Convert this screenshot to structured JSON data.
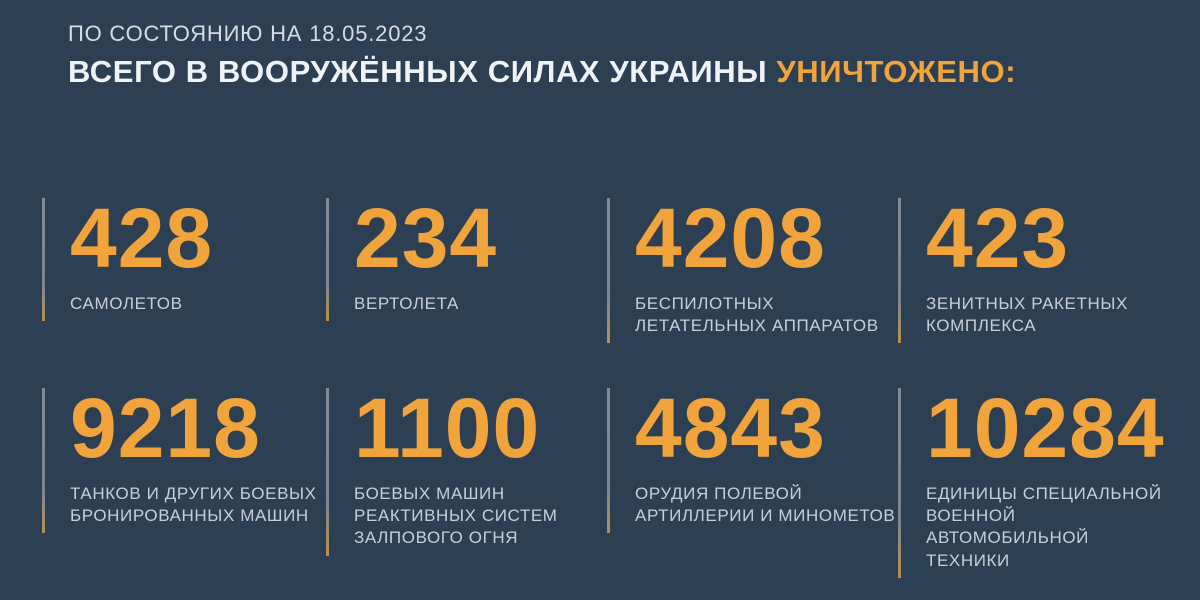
{
  "header": {
    "date_line": "ПО СОСТОЯНИЮ НА 18.05.2023",
    "title_main": "ВСЕГО В ВООРУЖЁННЫХ СИЛАХ УКРАИНЫ",
    "title_highlight": "УНИЧТОЖЕНО:"
  },
  "colors": {
    "background": "#2d4053",
    "accent_orange": "#f1a33c",
    "title_text": "#eff3f7",
    "label_text": "#c6cfd9",
    "divider": "#7d8794"
  },
  "stats": [
    {
      "value": "428",
      "label": "САМОЛЕТОВ"
    },
    {
      "value": "234",
      "label": "ВЕРТОЛЕТА"
    },
    {
      "value": "4208",
      "label": "БЕСПИЛОТНЫХ\nЛЕТАТЕЛЬНЫХ АППАРАТОВ"
    },
    {
      "value": "423",
      "label": "ЗЕНИТНЫХ РАКЕТНЫХ\nКОМПЛЕКСА"
    },
    {
      "value": "9218",
      "label": "ТАНКОВ И ДРУГИХ БОЕВЫХ\nБРОНИРОВАННЫХ МАШИН"
    },
    {
      "value": "1100",
      "label": "БОЕВЫХ МАШИН\nРЕАКТИВНЫХ СИСТЕМ\nЗАЛПОВОГО ОГНЯ"
    },
    {
      "value": "4843",
      "label": "ОРУДИЯ ПОЛЕВОЙ\nАРТИЛЛЕРИИ И МИНОМЕТОВ"
    },
    {
      "value": "10284",
      "label": "ЕДИНИЦЫ СПЕЦИАЛЬНОЙ\nВОЕННОЙ АВТОМОБИЛЬНОЙ\nТЕХНИКИ"
    }
  ],
  "chart_data": {
    "type": "table",
    "title": "ВСЕГО В ВООРУЖЁННЫХ СИЛАХ УКРАИНЫ УНИЧТОЖЕНО:",
    "subtitle": "ПО СОСТОЯНИЮ НА 18.05.2023",
    "categories": [
      "САМОЛЕТОВ",
      "ВЕРТОЛЕТА",
      "БЕСПИЛОТНЫХ ЛЕТАТЕЛЬНЫХ АППАРАТОВ",
      "ЗЕНИТНЫХ РАКЕТНЫХ КОМПЛЕКСА",
      "ТАНКОВ И ДРУГИХ БОЕВЫХ БРОНИРОВАННЫХ МАШИН",
      "БОЕВЫХ МАШИН РЕАКТИВНЫХ СИСТЕМ ЗАЛПОВОГО ОГНЯ",
      "ОРУДИЯ ПОЛЕВОЙ АРТИЛЛЕРИИ И МИНОМЕТОВ",
      "ЕДИНИЦЫ СПЕЦИАЛЬНОЙ ВОЕННОЙ АВТОМОБИЛЬНОЙ ТЕХНИКИ"
    ],
    "values": [
      428,
      234,
      4208,
      423,
      9218,
      1100,
      4843,
      10284
    ]
  }
}
